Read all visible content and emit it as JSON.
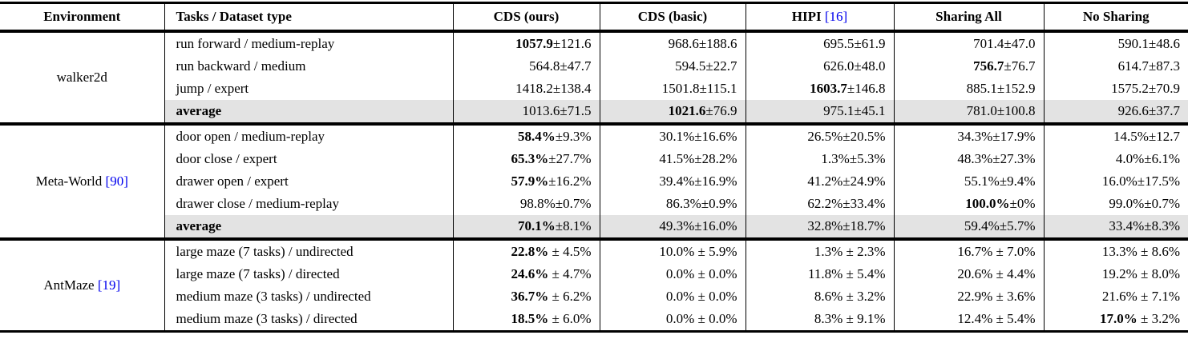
{
  "colors": {
    "citation_blue": "#0000ee",
    "average_row_shading": "#e3e3e3",
    "rule_color": "#000000",
    "background": "#ffffff"
  },
  "table": {
    "columns": [
      {
        "key": "environment",
        "label": "Environment",
        "align": "center"
      },
      {
        "key": "tasks",
        "label": "Tasks / Dataset type",
        "align": "left"
      },
      {
        "key": "cds_ours",
        "label": "CDS (ours)",
        "align": "right"
      },
      {
        "key": "cds_basic",
        "label": "CDS (basic)",
        "align": "right"
      },
      {
        "key": "hipi",
        "label": "HIPI",
        "cite": "[16]",
        "align": "right"
      },
      {
        "key": "sharing_all",
        "label": "Sharing All",
        "align": "right"
      },
      {
        "key": "no_sharing",
        "label": "No Sharing",
        "align": "right"
      }
    ],
    "groups": [
      {
        "environment": {
          "name": "walker2d",
          "cite": ""
        },
        "rows": [
          {
            "task": "run forward / medium-replay",
            "average": false,
            "cells": [
              {
                "text": "1057.9±121.6",
                "bold": "1057.9"
              },
              {
                "text": "968.6±188.6"
              },
              {
                "text": "695.5±61.9"
              },
              {
                "text": "701.4±47.0"
              },
              {
                "text": "590.1±48.6"
              }
            ]
          },
          {
            "task": "run backward / medium",
            "average": false,
            "cells": [
              {
                "text": "564.8±47.7"
              },
              {
                "text": "594.5±22.7"
              },
              {
                "text": "626.0±48.0"
              },
              {
                "text": "756.7±76.7",
                "bold": "756.7"
              },
              {
                "text": "614.7±87.3"
              }
            ]
          },
          {
            "task": "jump / expert",
            "average": false,
            "cells": [
              {
                "text": "1418.2±138.4"
              },
              {
                "text": "1501.8±115.1"
              },
              {
                "text": "1603.7±146.8",
                "bold": "1603.7"
              },
              {
                "text": "885.1±152.9"
              },
              {
                "text": "1575.2±70.9"
              }
            ]
          },
          {
            "task": "average",
            "average": true,
            "cells": [
              {
                "text": "1013.6±71.5"
              },
              {
                "text": "1021.6±76.9",
                "bold": "1021.6"
              },
              {
                "text": "975.1±45.1"
              },
              {
                "text": "781.0±100.8"
              },
              {
                "text": "926.6±37.7"
              }
            ]
          }
        ]
      },
      {
        "environment": {
          "name": "Meta-World",
          "cite": "[90]"
        },
        "rows": [
          {
            "task": "door open / medium-replay",
            "average": false,
            "cells": [
              {
                "text": "58.4%±9.3%",
                "bold": "58.4%"
              },
              {
                "text": "30.1%±16.6%"
              },
              {
                "text": "26.5%±20.5%"
              },
              {
                "text": "34.3%±17.9%"
              },
              {
                "text": "14.5%±12.7"
              }
            ]
          },
          {
            "task": "door close / expert",
            "average": false,
            "cells": [
              {
                "text": "65.3%±27.7%",
                "bold": "65.3%"
              },
              {
                "text": "41.5%±28.2%"
              },
              {
                "text": "1.3%±5.3%"
              },
              {
                "text": "48.3%±27.3%"
              },
              {
                "text": "4.0%±6.1%"
              }
            ]
          },
          {
            "task": "drawer open / expert",
            "average": false,
            "cells": [
              {
                "text": "57.9%±16.2%",
                "bold": "57.9%"
              },
              {
                "text": "39.4%±16.9%"
              },
              {
                "text": "41.2%±24.9%"
              },
              {
                "text": "55.1%±9.4%"
              },
              {
                "text": "16.0%±17.5%"
              }
            ]
          },
          {
            "task": "drawer close / medium-replay",
            "average": false,
            "cells": [
              {
                "text": "98.8%±0.7%"
              },
              {
                "text": "86.3%±0.9%"
              },
              {
                "text": "62.2%±33.4%"
              },
              {
                "text": "100.0%±0%",
                "bold": "100.0%"
              },
              {
                "text": "99.0%±0.7%"
              }
            ]
          },
          {
            "task": "average",
            "average": true,
            "cells": [
              {
                "text": "70.1%±8.1%",
                "bold": "70.1%"
              },
              {
                "text": "49.3%±16.0%"
              },
              {
                "text": "32.8%±18.7%"
              },
              {
                "text": "59.4%±5.7%"
              },
              {
                "text": "33.4%±8.3%"
              }
            ]
          }
        ]
      },
      {
        "environment": {
          "name": "AntMaze",
          "cite": "[19]"
        },
        "rows": [
          {
            "task": "large maze (7 tasks) / undirected",
            "average": false,
            "cells": [
              {
                "text": "22.8% ± 4.5%",
                "bold": "22.8%"
              },
              {
                "text": "10.0% ± 5.9%"
              },
              {
                "text": "1.3% ± 2.3%"
              },
              {
                "text": "16.7% ± 7.0%"
              },
              {
                "text": "13.3% ± 8.6%"
              }
            ]
          },
          {
            "task": "large maze (7 tasks) / directed",
            "average": false,
            "cells": [
              {
                "text": "24.6% ± 4.7%",
                "bold": "24.6%"
              },
              {
                "text": "0.0% ± 0.0%"
              },
              {
                "text": "11.8% ± 5.4%"
              },
              {
                "text": "20.6% ± 4.4%"
              },
              {
                "text": "19.2% ± 8.0%"
              }
            ]
          },
          {
            "task": "medium maze (3 tasks) / undirected",
            "average": false,
            "cells": [
              {
                "text": "36.7% ± 6.2%",
                "bold": "36.7%"
              },
              {
                "text": "0.0% ± 0.0%"
              },
              {
                "text": "8.6% ± 3.2%"
              },
              {
                "text": "22.9% ± 3.6%"
              },
              {
                "text": "21.6% ± 7.1%"
              }
            ]
          },
          {
            "task": "medium maze (3 tasks) / directed",
            "average": false,
            "cells": [
              {
                "text": "18.5% ± 6.0%",
                "bold": "18.5%"
              },
              {
                "text": "0.0% ± 0.0%"
              },
              {
                "text": "8.3% ± 9.1%"
              },
              {
                "text": "12.4% ± 5.4%"
              },
              {
                "text": "17.0% ± 3.2%",
                "bold": "17.0%"
              }
            ]
          }
        ]
      }
    ]
  }
}
